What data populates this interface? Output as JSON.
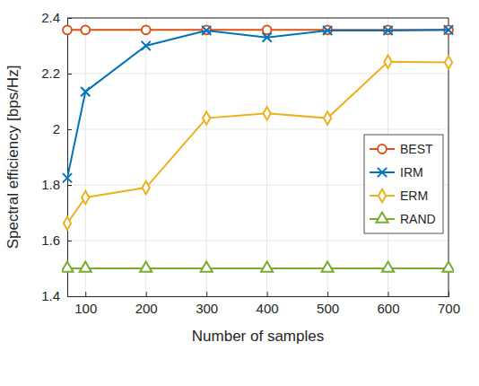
{
  "chart_data": {
    "type": "line",
    "x_label": "Number of samples",
    "y_label": "Spectral efficiency [bps/Hz]",
    "x": [
      70,
      100,
      200,
      300,
      400,
      500,
      600,
      700
    ],
    "series": [
      {
        "name": "BEST",
        "color": "#d95319",
        "marker": "circle",
        "values": [
          2.357,
          2.357,
          2.357,
          2.357,
          2.357,
          2.357,
          2.357,
          2.357
        ]
      },
      {
        "name": "IRM",
        "color": "#0072bd",
        "marker": "x",
        "values": [
          1.825,
          2.135,
          2.3,
          2.355,
          2.33,
          2.355,
          2.355,
          2.357
        ]
      },
      {
        "name": "ERM",
        "color": "#edb120",
        "marker": "diamond",
        "values": [
          1.662,
          1.755,
          1.79,
          2.04,
          2.057,
          2.04,
          2.243,
          2.24
        ]
      },
      {
        "name": "RAND",
        "color": "#77ac30",
        "marker": "triangle",
        "values": [
          1.5,
          1.5,
          1.5,
          1.5,
          1.5,
          1.5,
          1.5,
          1.5
        ]
      }
    ],
    "xlim": [
      70,
      700
    ],
    "xticks": [
      100,
      200,
      300,
      400,
      500,
      600,
      700
    ],
    "ylim": [
      1.4,
      2.4
    ],
    "yticks": [
      1.4,
      1.6,
      1.8,
      2,
      2.2,
      2.4
    ],
    "grid": true,
    "legend": "east"
  }
}
